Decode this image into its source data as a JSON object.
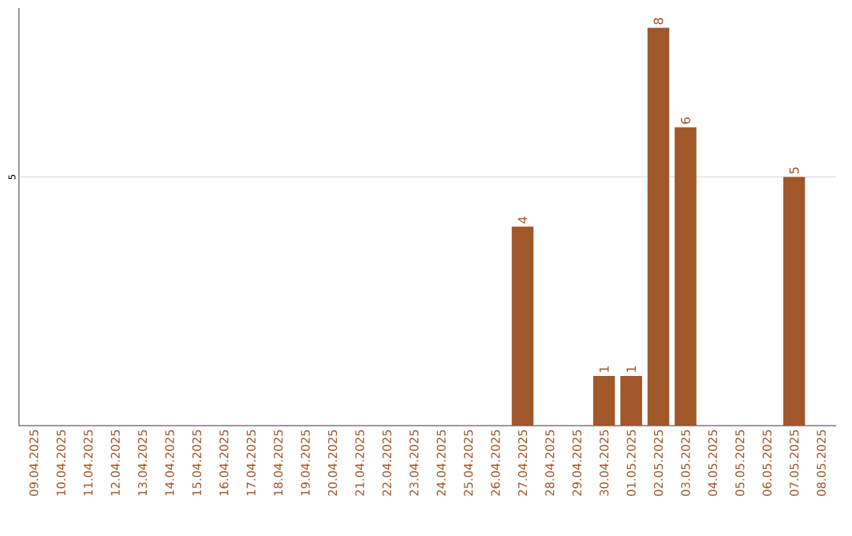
{
  "chart_data": {
    "type": "bar",
    "categories": [
      "09.04.2025",
      "10.04.2025",
      "11.04.2025",
      "12.04.2025",
      "13.04.2025",
      "14.04.2025",
      "15.04.2025",
      "16.04.2025",
      "17.04.2025",
      "18.04.2025",
      "19.04.2025",
      "20.04.2025",
      "21.04.2025",
      "22.04.2025",
      "23.04.2025",
      "24.04.2025",
      "25.04.2025",
      "26.04.2025",
      "27.04.2025",
      "28.04.2025",
      "29.04.2025",
      "30.04.2025",
      "01.05.2025",
      "02.05.2025",
      "03.05.2025",
      "04.05.2025",
      "05.05.2025",
      "06.05.2025",
      "07.05.2025",
      "08.05.2025"
    ],
    "values": [
      null,
      null,
      null,
      null,
      null,
      null,
      null,
      null,
      null,
      null,
      null,
      null,
      null,
      null,
      null,
      null,
      null,
      null,
      4,
      null,
      null,
      1,
      1,
      8,
      6,
      null,
      null,
      null,
      5,
      null
    ],
    "data_labels": true,
    "color": "#a0572a",
    "ylim": [
      0,
      8.4
    ],
    "ref_lines": [
      {
        "axis": "y",
        "value": 5,
        "label": "5",
        "color": "#cccccc"
      }
    ]
  }
}
